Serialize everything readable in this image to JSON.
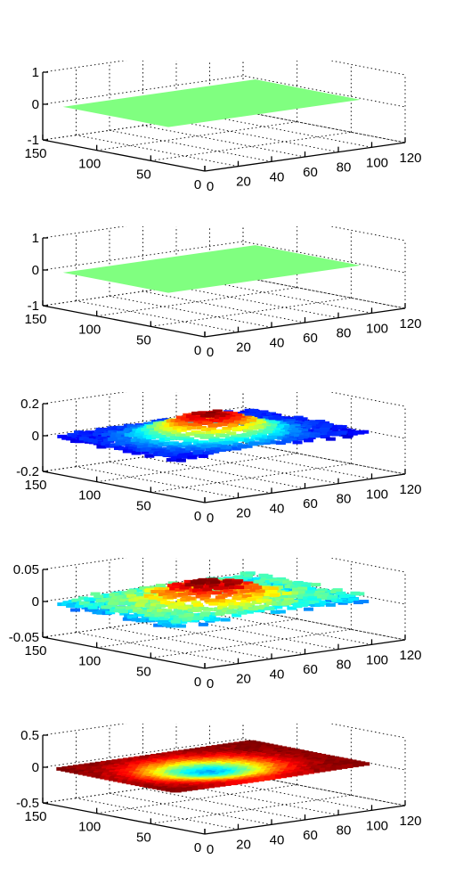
{
  "chart_data": [
    {
      "type": "surface",
      "surface": "flat",
      "colormap": "jet",
      "face_color": "#80ff80",
      "zlim": [
        -1,
        1
      ],
      "zticks": [
        "1",
        "0",
        "-1"
      ],
      "xticks": [
        "150",
        "100",
        "50",
        "0"
      ],
      "yticks": [
        "0",
        "20",
        "40",
        "60",
        "80",
        "100",
        "120"
      ],
      "grid": true
    },
    {
      "type": "surface",
      "surface": "flat",
      "colormap": "jet",
      "face_color": "#80ff80",
      "zlim": [
        -1,
        1
      ],
      "zticks": [
        "1",
        "0",
        "-1"
      ],
      "xticks": [
        "150",
        "100",
        "50",
        "0"
      ],
      "yticks": [
        "0",
        "20",
        "40",
        "60",
        "80",
        "100",
        "120"
      ],
      "grid": true
    },
    {
      "type": "surface",
      "surface": "noisy-peak",
      "colormap": "jet",
      "zlim": [
        -0.2,
        0.2
      ],
      "zticks": [
        "0.2",
        "0",
        "-0.2"
      ],
      "xticks": [
        "150",
        "100",
        "50",
        "0"
      ],
      "yticks": [
        "0",
        "20",
        "40",
        "60",
        "80",
        "100",
        "120"
      ],
      "grid": true
    },
    {
      "type": "surface",
      "surface": "noisy-peak",
      "colormap": "jet",
      "zlim": [
        -0.05,
        0.05
      ],
      "zticks": [
        "0.05",
        "0",
        "-0.05"
      ],
      "xticks": [
        "150",
        "100",
        "50",
        "0"
      ],
      "yticks": [
        "0",
        "20",
        "40",
        "60",
        "80",
        "100",
        "120"
      ],
      "grid": true
    },
    {
      "type": "surface",
      "surface": "dip",
      "colormap": "jet",
      "zlim": [
        -0.5,
        0.5
      ],
      "zticks": [
        "0.5",
        "0",
        "-0.5"
      ],
      "xticks": [
        "150",
        "100",
        "50",
        "0"
      ],
      "yticks": [
        "0",
        "20",
        "40",
        "60",
        "80",
        "100",
        "120"
      ],
      "grid": true
    }
  ]
}
